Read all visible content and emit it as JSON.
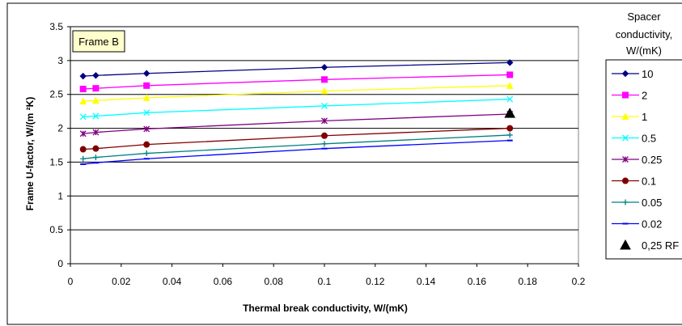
{
  "chart_data": {
    "type": "line",
    "annotation": "Frame B",
    "xlabel": "Thermal break conductivity, W/(mK)",
    "ylabel": "Frame U-factor, W/(m ²K)",
    "xlim": [
      0,
      0.2
    ],
    "ylim": [
      0,
      3.5
    ],
    "xticks": [
      "0",
      "0.02",
      "0.04",
      "0.06",
      "0.08",
      "0.1",
      "0.12",
      "0.14",
      "0.16",
      "0.18",
      "0.2"
    ],
    "yticks": [
      "0",
      "0.5",
      "1",
      "1.5",
      "2",
      "2.5",
      "3",
      "3.5"
    ],
    "grid": "horizontal",
    "legend": {
      "title": [
        "Spacer",
        "conductivity,",
        "W/(mK)"
      ],
      "placement": "right"
    },
    "x": [
      0.005,
      0.01,
      0.03,
      0.1,
      0.173
    ],
    "series": [
      {
        "name": "10",
        "color": "#000080",
        "marker": "diamond",
        "values": [
          2.77,
          2.78,
          2.81,
          2.9,
          2.97
        ]
      },
      {
        "name": "2",
        "color": "#ff00ff",
        "marker": "square",
        "values": [
          2.58,
          2.59,
          2.63,
          2.72,
          2.79
        ]
      },
      {
        "name": "1",
        "color": "#ffff00",
        "marker": "triangle",
        "values": [
          2.4,
          2.41,
          2.45,
          2.55,
          2.63
        ]
      },
      {
        "name": "0.5",
        "color": "#00ffff",
        "marker": "x",
        "values": [
          2.17,
          2.18,
          2.23,
          2.33,
          2.43
        ]
      },
      {
        "name": "0.25",
        "color": "#800080",
        "marker": "star",
        "values": [
          1.92,
          1.94,
          1.99,
          2.11,
          2.21
        ]
      },
      {
        "name": "0.1",
        "color": "#800000",
        "marker": "circle",
        "values": [
          1.69,
          1.7,
          1.76,
          1.89,
          2.0
        ]
      },
      {
        "name": "0.05",
        "color": "#008080",
        "marker": "plus",
        "values": [
          1.55,
          1.57,
          1.63,
          1.77,
          1.9
        ]
      },
      {
        "name": "0.02",
        "color": "#0000ff",
        "marker": "dash",
        "values": [
          1.47,
          1.49,
          1.55,
          1.7,
          1.82
        ]
      }
    ],
    "points": [
      {
        "name": "0,25 RF",
        "color": "#000000",
        "marker": "triangle",
        "x": 0.173,
        "y": 2.22
      }
    ]
  }
}
